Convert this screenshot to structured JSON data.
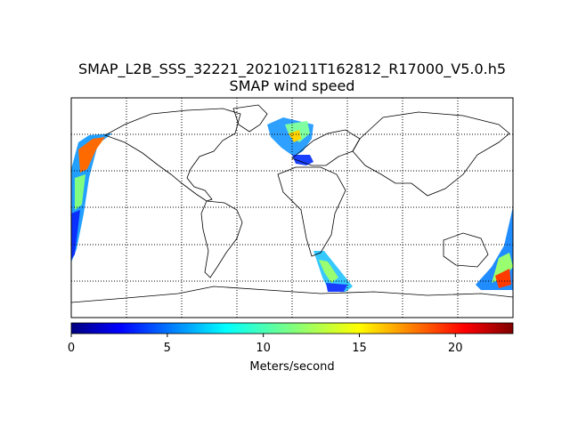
{
  "figure": {
    "title_line1": "SMAP_L2B_SSS_32221_20210211T162812_R17000_V5.0.h5",
    "title_line2": "SMAP wind speed"
  },
  "map": {
    "projection": "equirectangular",
    "lon_range": [
      -180,
      180
    ],
    "lat_range": [
      -90,
      90
    ],
    "graticule": "dotted",
    "coastlines": true,
    "swaths": [
      {
        "name": "north-atlantic-swath",
        "values_m_s": [
          8,
          10,
          6,
          12,
          4,
          9
        ]
      },
      {
        "name": "east-pacific-swath",
        "values_m_s": [
          18,
          20,
          14,
          10,
          6,
          4
        ]
      },
      {
        "name": "south-atlantic-swath",
        "values_m_s": [
          9,
          8,
          7,
          5,
          3
        ]
      },
      {
        "name": "southwest-pacific-swath",
        "values_m_s": [
          4,
          6,
          10,
          14,
          20
        ]
      }
    ]
  },
  "colorbar": {
    "colormap": "jet",
    "min": 0,
    "max": 23,
    "ticks": [
      "0",
      "5",
      "10",
      "15",
      "20"
    ],
    "tick_values": [
      0,
      5,
      10,
      15,
      20
    ],
    "label": "Meters/second"
  }
}
